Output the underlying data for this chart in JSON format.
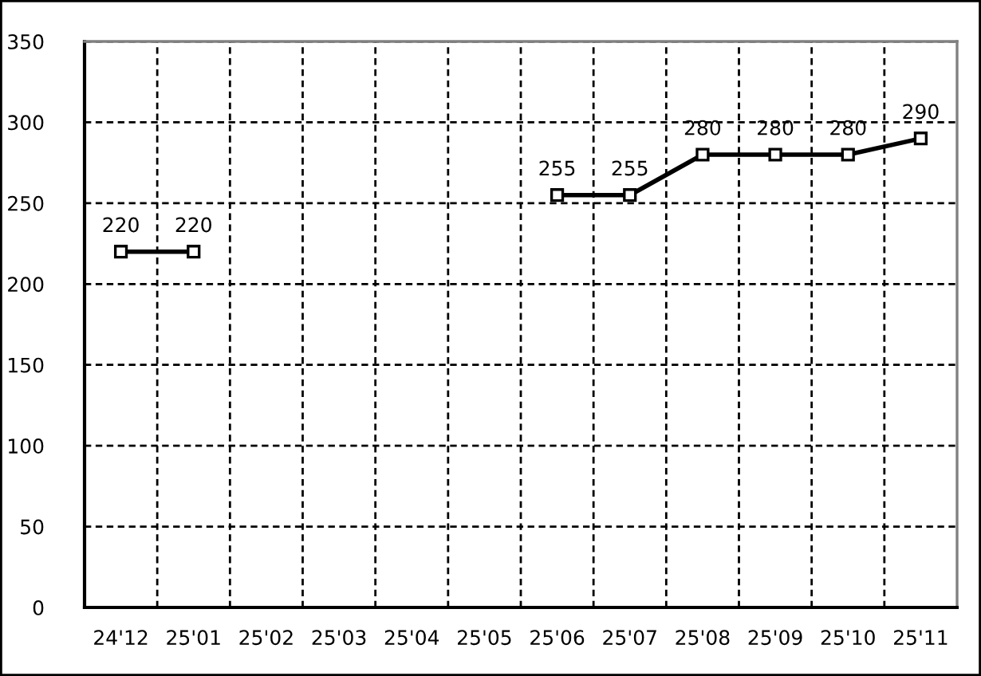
{
  "chart_data": {
    "type": "line",
    "categories": [
      "24'12",
      "25'01",
      "25'02",
      "25'03",
      "25'04",
      "25'05",
      "25'06",
      "25'07",
      "25'08",
      "25'09",
      "25'10",
      "25'11"
    ],
    "values": [
      220,
      220,
      null,
      null,
      null,
      null,
      255,
      255,
      280,
      280,
      280,
      290
    ],
    "color": "#000000",
    "ylim": [
      0,
      350
    ],
    "yticks": [
      0,
      50,
      100,
      150,
      200,
      250,
      300,
      350
    ],
    "grid": true,
    "marker": "square",
    "line_style": "solid",
    "data_labels": true
  }
}
